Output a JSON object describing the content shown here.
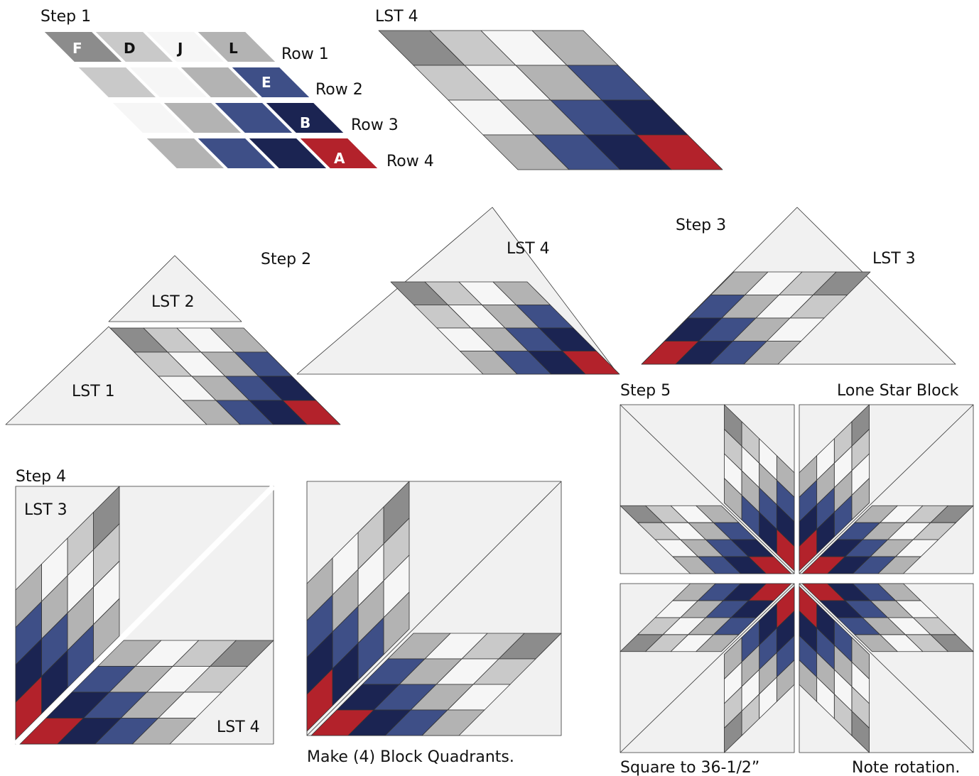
{
  "step1": {
    "title": "Step 1",
    "fabrics": [
      "F",
      "D",
      "J",
      "L",
      "E",
      "B",
      "A"
    ],
    "rows": [
      "Row 1",
      "Row 2",
      "Row 3",
      "Row 4"
    ]
  },
  "lst4_top": {
    "label": "LST 4"
  },
  "step2": {
    "title": "Step 2",
    "lst2": "LST 2",
    "lst1": "LST 1"
  },
  "lst4_middle": {
    "label": "LST 4"
  },
  "step3": {
    "title": "Step 3",
    "lst3": "LST 3"
  },
  "step4": {
    "title": "Step 4",
    "lst3": "LST 3",
    "lst4": "LST 4"
  },
  "quadrant": {
    "caption": "Make (4) Block Quadrants."
  },
  "step5": {
    "title": "Step 5",
    "block": "Lone Star Block",
    "size_note": "Square to 36-1/2”",
    "rotation_note": "Note rotation."
  }
}
